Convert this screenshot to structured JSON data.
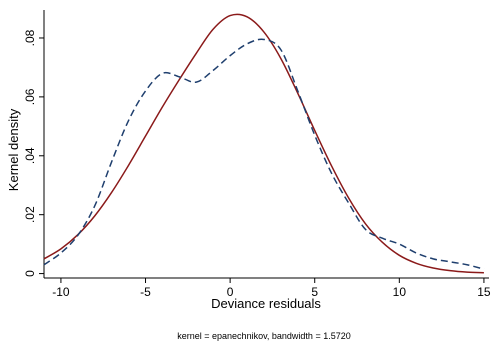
{
  "chart_data": {
    "type": "line",
    "xlabel": "Deviance residuals",
    "ylabel": "Kernel density",
    "note": "kernel = epanechnikov, bandwidth = 1.5720",
    "xlim": [
      -11,
      15.3
    ],
    "ylim": [
      -0.0015,
      0.0895
    ],
    "xticks": [
      -10,
      -5,
      0,
      5,
      10,
      15
    ],
    "xtick_labels": [
      "-10",
      "-5",
      "0",
      "5",
      "10",
      "15"
    ],
    "yticks": [
      0,
      0.02,
      0.04,
      0.06,
      0.08
    ],
    "ytick_labels": [
      "0",
      ".02",
      ".04",
      ".06",
      ".08"
    ],
    "grid": false,
    "legend": "none",
    "series": [
      {
        "style": "solid",
        "color": "#8b1a1a",
        "x": [
          -11,
          -10,
          -9,
          -8,
          -7,
          -6,
          -5,
          -4,
          -3,
          -2,
          -1,
          0,
          1,
          2,
          3,
          4,
          5,
          6,
          7,
          8,
          9,
          10,
          11,
          12,
          13,
          14,
          15
        ],
        "y": [
          0.005,
          0.0084,
          0.0132,
          0.0196,
          0.0276,
          0.0368,
          0.0467,
          0.0566,
          0.0659,
          0.0748,
          0.083,
          0.0876,
          0.0872,
          0.082,
          0.073,
          0.0612,
          0.0486,
          0.0365,
          0.0257,
          0.0169,
          0.0106,
          0.0062,
          0.0035,
          0.0019,
          0.001,
          0.0005,
          0.0003
        ]
      },
      {
        "style": "dashed",
        "color": "#1f3f6e",
        "x": [
          -11,
          -10,
          -9,
          -8,
          -7,
          -6,
          -5,
          -4,
          -3,
          -2,
          -1,
          0,
          1,
          2,
          3,
          4,
          5,
          6,
          7,
          8,
          9,
          10,
          11,
          12,
          13,
          14,
          15
        ],
        "y": [
          0.003,
          0.007,
          0.013,
          0.023,
          0.038,
          0.052,
          0.062,
          0.068,
          0.0668,
          0.065,
          0.069,
          0.074,
          0.078,
          0.0795,
          0.076,
          0.062,
          0.047,
          0.034,
          0.024,
          0.015,
          0.012,
          0.01,
          0.007,
          0.005,
          0.004,
          0.003,
          0.0015
        ]
      }
    ]
  }
}
